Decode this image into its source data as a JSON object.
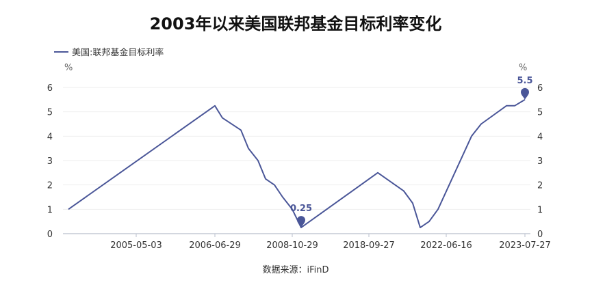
{
  "chart_data": {
    "type": "line",
    "title": "2003年以来美国联邦基金目标利率变化",
    "legend": {
      "position": "top-left",
      "entries": [
        "美国:联邦基金目标利率"
      ]
    },
    "y_unit_left": "%",
    "y_unit_right": "%",
    "ylim": [
      0,
      6
    ],
    "yticks": [
      "0",
      "1",
      "2",
      "3",
      "4",
      "5",
      "6"
    ],
    "x_tick_labels": [
      "2005-05-03",
      "2006-06-29",
      "2008-10-29",
      "2018-09-27",
      "2022-06-16",
      "2023-07-27"
    ],
    "grid": true,
    "series": [
      {
        "name": "美国:联邦基金目标利率",
        "color": "#4a5698",
        "values": [
          1.0,
          5.25,
          4.75,
          4.25,
          3.5,
          3.0,
          2.25,
          2.0,
          1.5,
          1.0,
          0.25,
          2.5,
          1.75,
          1.25,
          0.25,
          0.5,
          1.0,
          4.0,
          4.5,
          5.25,
          5.25,
          5.5
        ]
      }
    ],
    "annotations": [
      {
        "label": "0.25",
        "point_index": 10,
        "value": 0.25
      },
      {
        "label": "5.5",
        "point_index": 21,
        "value": 5.5
      }
    ],
    "source": "数据来源：iFinD"
  }
}
